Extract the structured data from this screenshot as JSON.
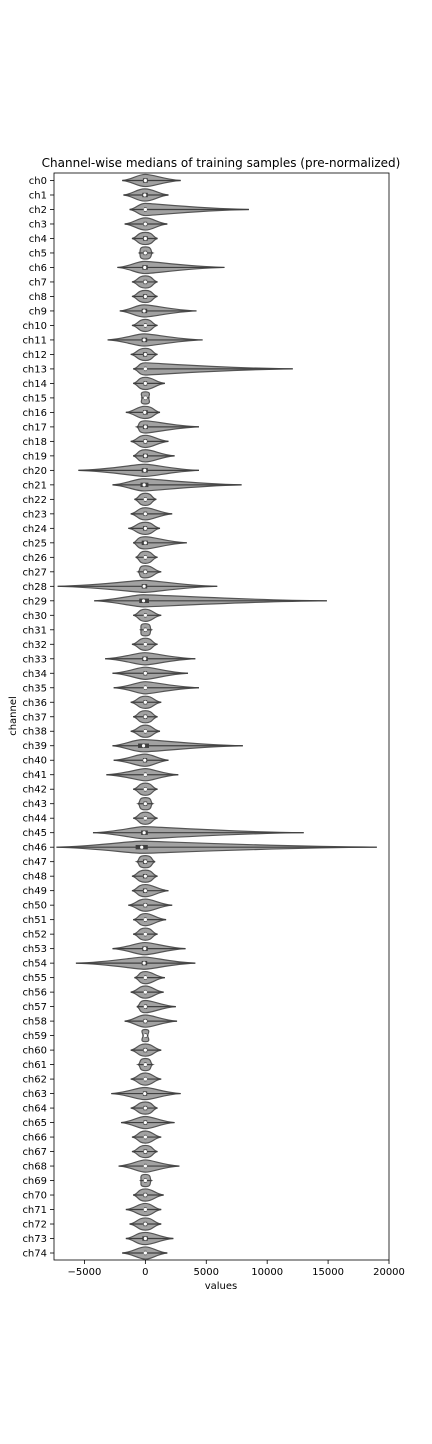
{
  "chart_data": {
    "type": "violin",
    "title": "Channel-wise medians of training samples (pre-normalized)",
    "xlabel": "values",
    "ylabel": "channel",
    "xlim": [
      -7500,
      20000
    ],
    "xticks": [
      -5000,
      0,
      5000,
      10000,
      15000,
      20000
    ],
    "xtick_labels": [
      "−5000",
      "0",
      "5000",
      "10000",
      "15000",
      "20000"
    ],
    "grid": false,
    "colors": {
      "violin": "#555555",
      "box": "#3f3f3f",
      "median": "#ffffff",
      "axis": "#000000"
    },
    "categories": [
      "ch0",
      "ch1",
      "ch2",
      "ch3",
      "ch4",
      "ch5",
      "ch6",
      "ch7",
      "ch8",
      "ch9",
      "ch10",
      "ch11",
      "ch12",
      "ch13",
      "ch14",
      "ch15",
      "ch16",
      "ch17",
      "ch18",
      "ch19",
      "ch20",
      "ch21",
      "ch22",
      "ch23",
      "ch24",
      "ch25",
      "ch26",
      "ch27",
      "ch28",
      "ch29",
      "ch30",
      "ch31",
      "ch32",
      "ch33",
      "ch34",
      "ch35",
      "ch36",
      "ch37",
      "ch38",
      "ch39",
      "ch40",
      "ch41",
      "ch42",
      "ch43",
      "ch44",
      "ch45",
      "ch46",
      "ch47",
      "ch48",
      "ch49",
      "ch50",
      "ch51",
      "ch52",
      "ch53",
      "ch54",
      "ch55",
      "ch56",
      "ch57",
      "ch58",
      "ch59",
      "ch60",
      "ch61",
      "ch62",
      "ch63",
      "ch64",
      "ch65",
      "ch66",
      "ch67",
      "ch68",
      "ch69",
      "ch70",
      "ch71",
      "ch72",
      "ch73",
      "ch74"
    ],
    "series": [
      {
        "min": -1900,
        "q1": -200,
        "median": 0,
        "q3": 200,
        "max": 2900
      },
      {
        "min": -1800,
        "q1": -250,
        "median": -50,
        "q3": 200,
        "max": 1900
      },
      {
        "min": -1300,
        "q1": -100,
        "median": 0,
        "q3": 100,
        "max": 8500
      },
      {
        "min": -1700,
        "q1": -150,
        "median": 0,
        "q3": 150,
        "max": 1800
      },
      {
        "min": -1100,
        "q1": -200,
        "median": 0,
        "q3": 200,
        "max": 1000
      },
      {
        "min": -500,
        "q1": -150,
        "median": 0,
        "q3": 150,
        "max": 600
      },
      {
        "min": -2300,
        "q1": -250,
        "median": -50,
        "q3": 200,
        "max": 6500
      },
      {
        "min": -1100,
        "q1": -150,
        "median": 0,
        "q3": 150,
        "max": 1000
      },
      {
        "min": -1100,
        "q1": -200,
        "median": 0,
        "q3": 150,
        "max": 1000
      },
      {
        "min": -2100,
        "q1": -300,
        "median": -100,
        "q3": 150,
        "max": 4200
      },
      {
        "min": -1100,
        "q1": -100,
        "median": 0,
        "q3": 100,
        "max": 1000
      },
      {
        "min": -3100,
        "q1": -300,
        "median": -100,
        "q3": 150,
        "max": 4700
      },
      {
        "min": -1200,
        "q1": -200,
        "median": 0,
        "q3": 150,
        "max": 1000
      },
      {
        "min": -1000,
        "q1": -100,
        "median": 0,
        "q3": 100,
        "max": 12100
      },
      {
        "min": -1000,
        "q1": -150,
        "median": 0,
        "q3": 150,
        "max": 1600
      },
      {
        "min": -300,
        "q1": -100,
        "median": 0,
        "q3": 100,
        "max": 300
      },
      {
        "min": -1600,
        "q1": -200,
        "median": -50,
        "q3": 200,
        "max": 1200
      },
      {
        "min": -700,
        "q1": -200,
        "median": 0,
        "q3": 200,
        "max": 4400
      },
      {
        "min": -1200,
        "q1": -150,
        "median": 0,
        "q3": 150,
        "max": 1900
      },
      {
        "min": -1000,
        "q1": -200,
        "median": 0,
        "q3": 200,
        "max": 2400
      },
      {
        "min": -5500,
        "q1": -300,
        "median": -50,
        "q3": 200,
        "max": 4400
      },
      {
        "min": -2700,
        "q1": -400,
        "median": -100,
        "q3": 250,
        "max": 7900
      },
      {
        "min": -900,
        "q1": -100,
        "median": 0,
        "q3": 100,
        "max": 900
      },
      {
        "min": -1200,
        "q1": -150,
        "median": 0,
        "q3": 150,
        "max": 2200
      },
      {
        "min": -1400,
        "q1": -200,
        "median": 0,
        "q3": 150,
        "max": 1200
      },
      {
        "min": -1000,
        "q1": -300,
        "median": 0,
        "q3": 200,
        "max": 3400
      },
      {
        "min": -800,
        "q1": -100,
        "median": 0,
        "q3": 100,
        "max": 1000
      },
      {
        "min": -600,
        "q1": -150,
        "median": 0,
        "q3": 150,
        "max": 1300
      },
      {
        "min": -7200,
        "q1": -300,
        "median": -100,
        "q3": 150,
        "max": 5900
      },
      {
        "min": -4200,
        "q1": -500,
        "median": -150,
        "q3": 300,
        "max": 14900
      },
      {
        "min": -1000,
        "q1": -100,
        "median": 0,
        "q3": 100,
        "max": 1300
      },
      {
        "min": -400,
        "q1": -100,
        "median": 0,
        "q3": 100,
        "max": 500
      },
      {
        "min": -1100,
        "q1": -100,
        "median": 0,
        "q3": 100,
        "max": 1000
      },
      {
        "min": -3300,
        "q1": -250,
        "median": -50,
        "q3": 200,
        "max": 4100
      },
      {
        "min": -2700,
        "q1": -150,
        "median": 0,
        "q3": 150,
        "max": 3500
      },
      {
        "min": -2600,
        "q1": -100,
        "median": 0,
        "q3": 100,
        "max": 4400
      },
      {
        "min": -1200,
        "q1": -150,
        "median": 0,
        "q3": 150,
        "max": 1300
      },
      {
        "min": -1000,
        "q1": -150,
        "median": 0,
        "q3": 150,
        "max": 1000
      },
      {
        "min": -1200,
        "q1": -100,
        "median": 0,
        "q3": 100,
        "max": 1200
      },
      {
        "min": -2700,
        "q1": -600,
        "median": -150,
        "q3": 300,
        "max": 8000
      },
      {
        "min": -2600,
        "q1": -200,
        "median": -50,
        "q3": 150,
        "max": 1900
      },
      {
        "min": -3200,
        "q1": -100,
        "median": 0,
        "q3": 100,
        "max": 2700
      },
      {
        "min": -1000,
        "q1": -100,
        "median": 0,
        "q3": 100,
        "max": 1000
      },
      {
        "min": -600,
        "q1": -150,
        "median": 0,
        "q3": 150,
        "max": 600
      },
      {
        "min": -1000,
        "q1": -100,
        "median": 0,
        "q3": 100,
        "max": 1000
      },
      {
        "min": -4300,
        "q1": -350,
        "median": -100,
        "q3": 200,
        "max": 13000
      },
      {
        "min": -7300,
        "q1": -800,
        "median": -300,
        "q3": 200,
        "max": 19000
      },
      {
        "min": -700,
        "q1": -200,
        "median": 0,
        "q3": 150,
        "max": 800
      },
      {
        "min": -1100,
        "q1": -200,
        "median": 0,
        "q3": 150,
        "max": 1000
      },
      {
        "min": -1100,
        "q1": -200,
        "median": 0,
        "q3": 150,
        "max": 1900
      },
      {
        "min": -1400,
        "q1": -150,
        "median": 0,
        "q3": 150,
        "max": 2200
      },
      {
        "min": -1000,
        "q1": -100,
        "median": 0,
        "q3": 100,
        "max": 1700
      },
      {
        "min": -1000,
        "q1": -100,
        "median": 0,
        "q3": 100,
        "max": 1000
      },
      {
        "min": -2700,
        "q1": -250,
        "median": -50,
        "q3": 200,
        "max": 3300
      },
      {
        "min": -5700,
        "q1": -300,
        "median": -100,
        "q3": 150,
        "max": 4100
      },
      {
        "min": -900,
        "q1": -100,
        "median": 0,
        "q3": 100,
        "max": 1600
      },
      {
        "min": -1200,
        "q1": -100,
        "median": 0,
        "q3": 100,
        "max": 1500
      },
      {
        "min": -700,
        "q1": -100,
        "median": 0,
        "q3": 150,
        "max": 2500
      },
      {
        "min": -1700,
        "q1": -150,
        "median": 0,
        "q3": 150,
        "max": 2600
      },
      {
        "min": -200,
        "q1": -50,
        "median": 0,
        "q3": 50,
        "max": 200
      },
      {
        "min": -1200,
        "q1": -150,
        "median": 0,
        "q3": 150,
        "max": 1300
      },
      {
        "min": -600,
        "q1": -100,
        "median": 0,
        "q3": 100,
        "max": 600
      },
      {
        "min": -1200,
        "q1": -100,
        "median": 0,
        "q3": 100,
        "max": 1300
      },
      {
        "min": -2800,
        "q1": -200,
        "median": -50,
        "q3": 150,
        "max": 2900
      },
      {
        "min": -1200,
        "q1": -150,
        "median": 0,
        "q3": 150,
        "max": 1000
      },
      {
        "min": -2000,
        "q1": -150,
        "median": 0,
        "q3": 150,
        "max": 2400
      },
      {
        "min": -1100,
        "q1": -100,
        "median": 0,
        "q3": 100,
        "max": 1300
      },
      {
        "min": -1100,
        "q1": -150,
        "median": 0,
        "q3": 150,
        "max": 1000
      },
      {
        "min": -2200,
        "q1": -100,
        "median": 0,
        "q3": 100,
        "max": 2800
      },
      {
        "min": -400,
        "q1": -100,
        "median": 0,
        "q3": 100,
        "max": 500
      },
      {
        "min": -1000,
        "q1": -150,
        "median": 0,
        "q3": 150,
        "max": 1500
      },
      {
        "min": -1600,
        "q1": -100,
        "median": 0,
        "q3": 100,
        "max": 1300
      },
      {
        "min": -1300,
        "q1": -150,
        "median": 0,
        "q3": 150,
        "max": 1300
      },
      {
        "min": -1600,
        "q1": -250,
        "median": 0,
        "q3": 200,
        "max": 2300
      },
      {
        "min": -1900,
        "q1": -100,
        "median": 0,
        "q3": 100,
        "max": 1800
      }
    ]
  }
}
